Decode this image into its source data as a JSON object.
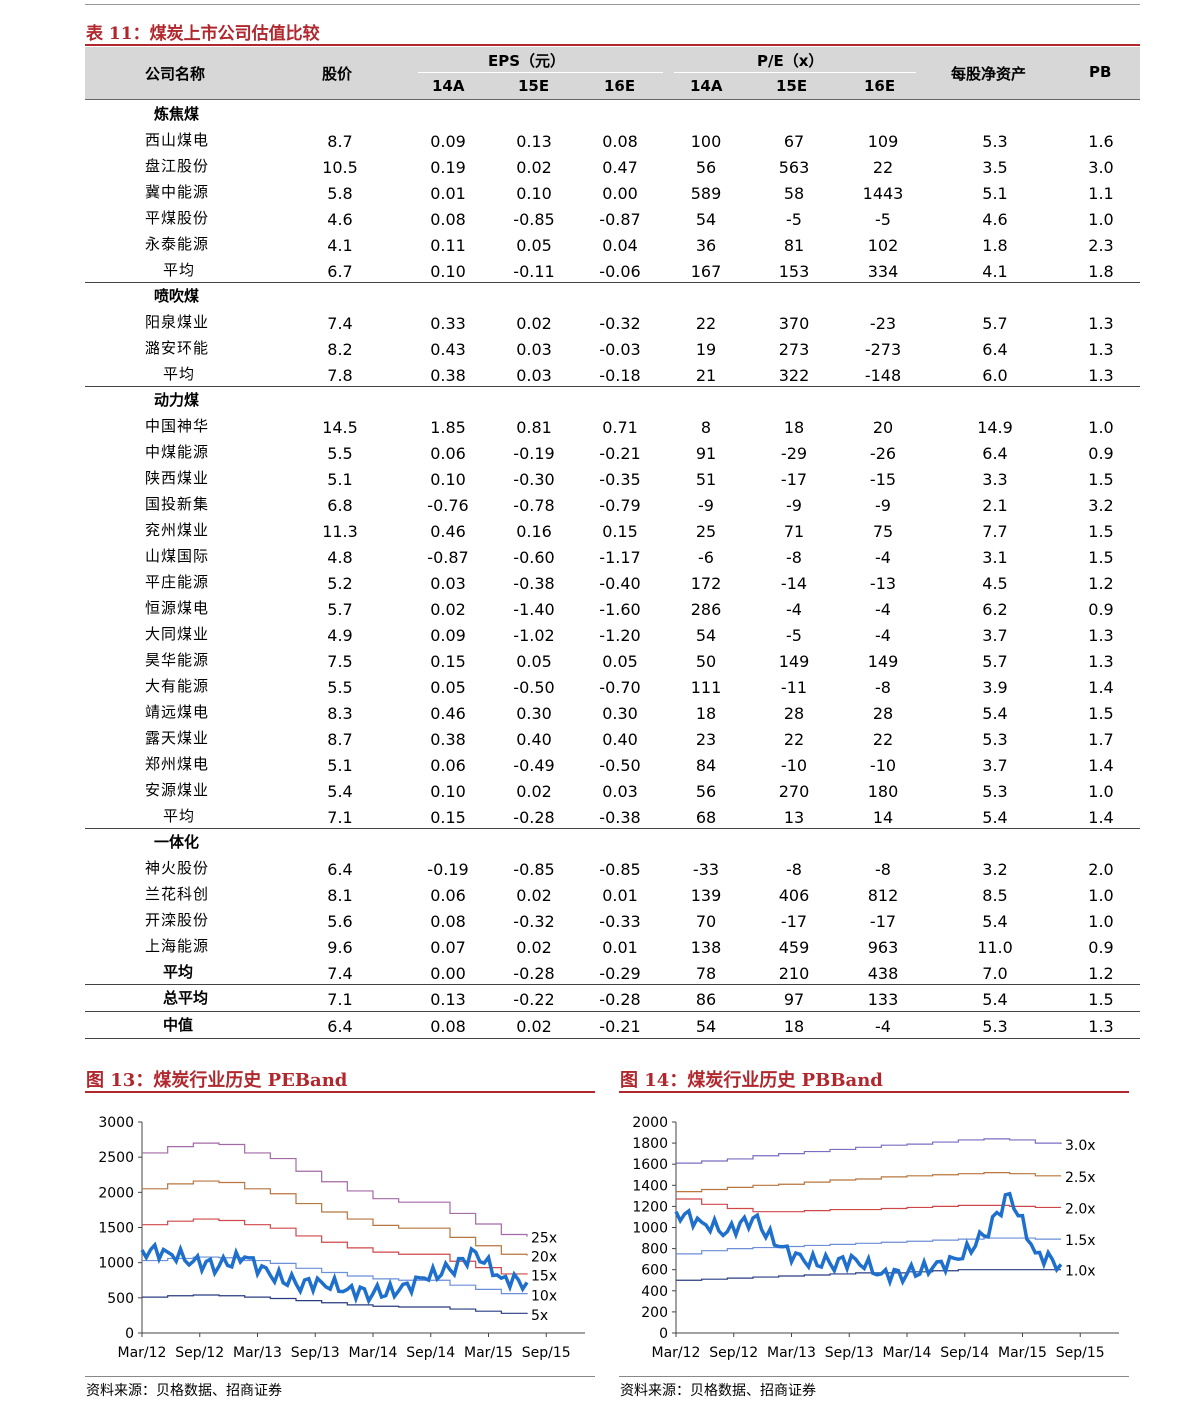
{
  "table": {
    "title": "表 11：煤炭上市公司估值比较",
    "headers": {
      "company": "公司名称",
      "price": "股价",
      "eps": "EPS（元）",
      "pe": "P/E（x）",
      "bvps": "每股净资产",
      "pb": "PB",
      "years": [
        "14A",
        "15E",
        "16E"
      ]
    },
    "groups": [
      {
        "name": "炼焦煤",
        "rows": [
          {
            "name": "西山煤电",
            "v": [
              "8.7",
              "0.09",
              "0.13",
              "0.08",
              "100",
              "67",
              "109",
              "5.3",
              "1.6"
            ]
          },
          {
            "name": "盘江股份",
            "v": [
              "10.5",
              "0.19",
              "0.02",
              "0.47",
              "56",
              "563",
              "22",
              "3.5",
              "3.0"
            ]
          },
          {
            "name": "冀中能源",
            "v": [
              "5.8",
              "0.01",
              "0.10",
              "0.00",
              "589",
              "58",
              "1443",
              "5.1",
              "1.1"
            ]
          },
          {
            "name": "平煤股份",
            "v": [
              "4.6",
              "0.08",
              "-0.85",
              "-0.87",
              "54",
              "-5",
              "-5",
              "4.6",
              "1.0"
            ]
          },
          {
            "name": "永泰能源",
            "v": [
              "4.1",
              "0.11",
              "0.05",
              "0.04",
              "36",
              "81",
              "102",
              "1.8",
              "2.3"
            ]
          },
          {
            "name": "平均",
            "v": [
              "6.7",
              "0.10",
              "-0.11",
              "-0.06",
              "167",
              "153",
              "334",
              "4.1",
              "1.8"
            ],
            "avg": true
          }
        ]
      },
      {
        "name": "喷吹煤",
        "rows": [
          {
            "name": "阳泉煤业",
            "v": [
              "7.4",
              "0.33",
              "0.02",
              "-0.32",
              "22",
              "370",
              "-23",
              "5.7",
              "1.3"
            ]
          },
          {
            "name": "潞安环能",
            "v": [
              "8.2",
              "0.43",
              "0.03",
              "-0.03",
              "19",
              "273",
              "-273",
              "6.4",
              "1.3"
            ]
          },
          {
            "name": "平均",
            "v": [
              "7.8",
              "0.38",
              "0.03",
              "-0.18",
              "21",
              "322",
              "-148",
              "6.0",
              "1.3"
            ],
            "avg": true
          }
        ]
      },
      {
        "name": "动力煤",
        "rows": [
          {
            "name": "中国神华",
            "v": [
              "14.5",
              "1.85",
              "0.81",
              "0.71",
              "8",
              "18",
              "20",
              "14.9",
              "1.0"
            ]
          },
          {
            "name": "中煤能源",
            "v": [
              "5.5",
              "0.06",
              "-0.19",
              "-0.21",
              "91",
              "-29",
              "-26",
              "6.4",
              "0.9"
            ]
          },
          {
            "name": "陕西煤业",
            "v": [
              "5.1",
              "0.10",
              "-0.30",
              "-0.35",
              "51",
              "-17",
              "-15",
              "3.3",
              "1.5"
            ]
          },
          {
            "name": "国投新集",
            "v": [
              "6.8",
              "-0.76",
              "-0.78",
              "-0.79",
              "-9",
              "-9",
              "-9",
              "2.1",
              "3.2"
            ]
          },
          {
            "name": "兖州煤业",
            "v": [
              "11.3",
              "0.46",
              "0.16",
              "0.15",
              "25",
              "71",
              "75",
              "7.7",
              "1.5"
            ]
          },
          {
            "name": "山煤国际",
            "v": [
              "4.8",
              "-0.87",
              "-0.60",
              "-1.17",
              "-6",
              "-8",
              "-4",
              "3.1",
              "1.5"
            ]
          },
          {
            "name": "平庄能源",
            "v": [
              "5.2",
              "0.03",
              "-0.38",
              "-0.40",
              "172",
              "-14",
              "-13",
              "4.5",
              "1.2"
            ]
          },
          {
            "name": "恒源煤电",
            "v": [
              "5.7",
              "0.02",
              "-1.40",
              "-1.60",
              "286",
              "-4",
              "-4",
              "6.2",
              "0.9"
            ]
          },
          {
            "name": "大同煤业",
            "v": [
              "4.9",
              "0.09",
              "-1.02",
              "-1.20",
              "54",
              "-5",
              "-4",
              "3.7",
              "1.3"
            ]
          },
          {
            "name": "昊华能源",
            "v": [
              "7.5",
              "0.15",
              "0.05",
              "0.05",
              "50",
              "149",
              "149",
              "5.7",
              "1.3"
            ]
          },
          {
            "name": "大有能源",
            "v": [
              "5.5",
              "0.05",
              "-0.50",
              "-0.70",
              "111",
              "-11",
              "-8",
              "3.9",
              "1.4"
            ]
          },
          {
            "name": "靖远煤电",
            "v": [
              "8.3",
              "0.46",
              "0.30",
              "0.30",
              "18",
              "28",
              "28",
              "5.4",
              "1.5"
            ]
          },
          {
            "name": "露天煤业",
            "v": [
              "8.7",
              "0.38",
              "0.40",
              "0.40",
              "23",
              "22",
              "22",
              "5.3",
              "1.7"
            ]
          },
          {
            "name": "郑州煤电",
            "v": [
              "5.1",
              "0.06",
              "-0.49",
              "-0.50",
              "84",
              "-10",
              "-10",
              "3.7",
              "1.4"
            ]
          },
          {
            "name": "安源煤业",
            "v": [
              "5.4",
              "0.10",
              "0.02",
              "0.03",
              "56",
              "270",
              "180",
              "5.3",
              "1.0"
            ]
          },
          {
            "name": "平均",
            "v": [
              "7.1",
              "0.15",
              "-0.28",
              "-0.38",
              "68",
              "13",
              "14",
              "5.4",
              "1.4"
            ],
            "avg": true
          }
        ]
      },
      {
        "name": "一体化",
        "rows": [
          {
            "name": "神火股份",
            "v": [
              "6.4",
              "-0.19",
              "-0.85",
              "-0.85",
              "-33",
              "-8",
              "-8",
              "3.2",
              "2.0"
            ]
          },
          {
            "name": "兰花科创",
            "v": [
              "8.1",
              "0.06",
              "0.02",
              "0.01",
              "139",
              "406",
              "812",
              "8.5",
              "1.0"
            ]
          },
          {
            "name": "开滦股份",
            "v": [
              "5.6",
              "0.08",
              "-0.32",
              "-0.33",
              "70",
              "-17",
              "-17",
              "5.4",
              "1.0"
            ]
          },
          {
            "name": "上海能源",
            "v": [
              "9.6",
              "0.07",
              "0.02",
              "0.01",
              "138",
              "459",
              "963",
              "11.0",
              "0.9"
            ]
          },
          {
            "name": "平均",
            "v": [
              "7.4",
              "0.00",
              "-0.28",
              "-0.29",
              "78",
              "210",
              "438",
              "7.0",
              "1.2"
            ],
            "avg": true,
            "bold": true
          }
        ]
      }
    ],
    "totals": [
      {
        "name": "总平均",
        "v": [
          "7.1",
          "0.13",
          "-0.22",
          "-0.28",
          "86",
          "97",
          "133",
          "5.4",
          "1.5"
        ]
      },
      {
        "name": "中值",
        "v": [
          "6.4",
          "0.08",
          "0.02",
          "-0.21",
          "54",
          "18",
          "-4",
          "5.3",
          "1.3"
        ]
      }
    ]
  },
  "fig13": {
    "title": "图 13：煤炭行业历史 PEBand",
    "source": "资料来源：贝格数据、招商证券"
  },
  "fig14": {
    "title": "图 14：煤炭行业历史 PBBand",
    "source": "资料来源：贝格数据、招商证券"
  },
  "chart_data": [
    {
      "type": "line",
      "title": "图 13：煤炭行业历史 PEBand",
      "x_ticks": [
        "Mar/12",
        "Sep/12",
        "Mar/13",
        "Sep/13",
        "Mar/14",
        "Sep/14",
        "Mar/15",
        "Sep/15"
      ],
      "ylim": [
        0,
        3000
      ],
      "y_ticks": [
        0,
        500,
        1000,
        1500,
        2000,
        2500,
        3000
      ],
      "x": [
        0,
        3,
        6,
        9,
        12,
        15,
        18,
        21,
        24,
        27,
        30,
        33,
        36,
        39,
        42,
        45
      ],
      "series": [
        {
          "name": "25x",
          "color": "#a36aa6",
          "values": [
            2560,
            2650,
            2700,
            2680,
            2560,
            2480,
            2300,
            2150,
            2020,
            1910,
            1860,
            1860,
            1700,
            1550,
            1400,
            1370
          ]
        },
        {
          "name": "20x",
          "color": "#b8763f",
          "values": [
            2050,
            2120,
            2160,
            2140,
            2050,
            1980,
            1840,
            1720,
            1620,
            1530,
            1490,
            1490,
            1360,
            1240,
            1120,
            1100
          ]
        },
        {
          "name": "15x",
          "color": "#d0474a",
          "values": [
            1540,
            1590,
            1620,
            1600,
            1540,
            1490,
            1380,
            1290,
            1210,
            1150,
            1120,
            1120,
            1020,
            930,
            840,
            830
          ]
        },
        {
          "name": "10x",
          "color": "#6c8fd8",
          "values": [
            1030,
            1060,
            1080,
            1070,
            1030,
            990,
            920,
            860,
            810,
            770,
            750,
            750,
            680,
            620,
            560,
            550
          ]
        },
        {
          "name": "5x",
          "color": "#2a3b80",
          "values": [
            510,
            530,
            540,
            530,
            510,
            490,
            460,
            430,
            400,
            380,
            370,
            370,
            340,
            310,
            280,
            270
          ]
        },
        {
          "name": "",
          "color": "#1f6fcc",
          "values": [
            1180,
            1150,
            1020,
            950,
            1080,
            820,
            700,
            720,
            620,
            560,
            600,
            780,
            900,
            1150,
            780,
            720
          ]
        }
      ],
      "grid": false
    },
    {
      "type": "line",
      "title": "图 14：煤炭行业历史 PBBand",
      "x_ticks": [
        "Mar/12",
        "Sep/12",
        "Mar/13",
        "Sep/13",
        "Mar/14",
        "Sep/14",
        "Mar/15",
        "Sep/15"
      ],
      "ylim": [
        0,
        2000
      ],
      "y_ticks": [
        0,
        200,
        400,
        600,
        800,
        1000,
        1200,
        1400,
        1600,
        1800,
        2000
      ],
      "x": [
        0,
        3,
        6,
        9,
        12,
        15,
        18,
        21,
        24,
        27,
        30,
        33,
        36,
        39,
        42,
        45
      ],
      "series": [
        {
          "name": "3.0x",
          "color": "#7b6cc0",
          "values": [
            1610,
            1630,
            1650,
            1680,
            1700,
            1720,
            1740,
            1760,
            1780,
            1790,
            1810,
            1830,
            1840,
            1830,
            1800,
            1790
          ]
        },
        {
          "name": "2.5x",
          "color": "#b8763f",
          "values": [
            1340,
            1360,
            1380,
            1400,
            1410,
            1430,
            1450,
            1460,
            1480,
            1490,
            1500,
            1510,
            1520,
            1510,
            1490,
            1490
          ]
        },
        {
          "name": "2.0x",
          "color": "#d0474a",
          "values": [
            1270,
            1220,
            1180,
            1150,
            1150,
            1160,
            1170,
            1170,
            1180,
            1190,
            1200,
            1210,
            1210,
            1200,
            1190,
            1190
          ]
        },
        {
          "name": "1.5x",
          "color": "#6c8fd8",
          "values": [
            750,
            780,
            800,
            810,
            820,
            830,
            840,
            850,
            860,
            870,
            880,
            890,
            900,
            900,
            890,
            890
          ]
        },
        {
          "name": "1.0x",
          "color": "#2a3b80",
          "values": [
            500,
            510,
            520,
            530,
            540,
            550,
            560,
            570,
            570,
            580,
            590,
            600,
            600,
            600,
            600,
            600
          ]
        },
        {
          "name": "",
          "color": "#1f6fcc",
          "values": [
            1150,
            1050,
            960,
            1090,
            820,
            680,
            660,
            700,
            560,
            560,
            620,
            700,
            920,
            1320,
            760,
            650
          ]
        }
      ],
      "grid": false
    }
  ]
}
